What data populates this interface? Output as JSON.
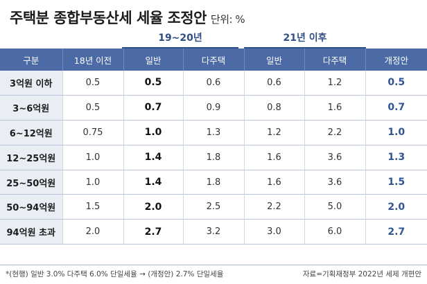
{
  "title": "주택분 종합부동산세 세율 조정안",
  "unit": "단위: %",
  "groups": {
    "g1": "19~20년",
    "g2": "21년 이후"
  },
  "columns": [
    "구분",
    "18년 이전",
    "일반",
    "다주택",
    "일반",
    "다주택",
    "개정안"
  ],
  "rows": [
    {
      "label": "3억원 이하",
      "c1": "0.5",
      "c2": "0.5",
      "c3": "0.6",
      "c4": "0.6",
      "c5": "1.2",
      "c6": "0.5"
    },
    {
      "label": "3~6억원",
      "c1": "0.5",
      "c2": "0.7",
      "c3": "0.9",
      "c4": "0.8",
      "c5": "1.6",
      "c6": "0.7"
    },
    {
      "label": "6~12억원",
      "c1": "0.75",
      "c2": "1.0",
      "c3": "1.3",
      "c4": "1.2",
      "c5": "2.2",
      "c6": "1.0"
    },
    {
      "label": "12~25억원",
      "c1": "1.0",
      "c2": "1.4",
      "c3": "1.8",
      "c4": "1.6",
      "c5": "3.6",
      "c6": "1.3"
    },
    {
      "label": "25~50억원",
      "c1": "1.0",
      "c2": "1.4",
      "c3": "1.8",
      "c4": "1.6",
      "c5": "3.6",
      "c6": "1.5"
    },
    {
      "label": "50~94억원",
      "c1": "1.5",
      "c2": "2.0",
      "c3": "2.5",
      "c4": "2.2",
      "c5": "5.0",
      "c6": "2.0"
    },
    {
      "label": "94억원 초과",
      "c1": "2.0",
      "c2": "2.7",
      "c3": "3.2",
      "c4": "3.0",
      "c5": "6.0",
      "c6": "2.7"
    }
  ],
  "note": "*(현행) 일반 3.0% 다주택 6.0% 단일세율 → (개정안) 2.7% 단일세율",
  "source": "자료=기획재정부 2022년 세제 개편안",
  "colors": {
    "header_bg": "#4b6aa6",
    "category_bg": "#e9edf4",
    "accent": "#2f5596"
  }
}
